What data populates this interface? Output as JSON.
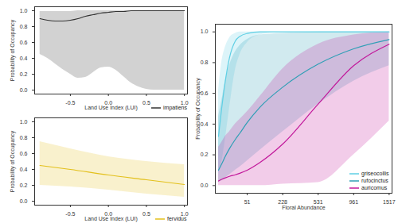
{
  "chart_data": [
    {
      "type": "line",
      "xlabel": "Land Use Index (LUI)",
      "ylabel": "Probability of Occupancy",
      "x": [
        -0.9,
        -0.8,
        -0.7,
        -0.6,
        -0.5,
        -0.4,
        -0.3,
        -0.2,
        -0.1,
        0,
        0.1,
        0.2,
        0.3,
        0.4,
        0.5,
        0.6,
        0.7,
        0.8,
        0.9,
        1.0
      ],
      "series": [
        {
          "name": "impatiens",
          "color": "#333333",
          "values": [
            0.9,
            0.88,
            0.87,
            0.87,
            0.88,
            0.9,
            0.93,
            0.95,
            0.97,
            0.98,
            0.99,
            0.99,
            1,
            1,
            1,
            1,
            1,
            1,
            1,
            1
          ],
          "lower": [
            0.45,
            0.4,
            0.33,
            0.26,
            0.2,
            0.15,
            0.16,
            0.22,
            0.28,
            0.29,
            0.25,
            0.17,
            0.09,
            0.04,
            0.01,
            0,
            0,
            0,
            0,
            0
          ],
          "upper": [
            0.99,
            0.99,
            0.99,
            0.99,
            0.99,
            1,
            1,
            1,
            1,
            1,
            1,
            1,
            1,
            1,
            1,
            1,
            1,
            1,
            1,
            1
          ]
        }
      ],
      "xlim": [
        -0.97,
        1.04
      ],
      "xticks": [
        -0.5,
        {
          "value": 0,
          "label": "0.0"
        },
        0.5,
        {
          "value": 1,
          "label": "1.0"
        }
      ],
      "ylim": [
        -0.05,
        1.05
      ],
      "yticks": [
        {
          "value": 0,
          "label": "0.0"
        },
        0.2,
        0.4,
        0.6,
        0.8,
        {
          "value": 1,
          "label": "1.0"
        }
      ],
      "grid": false,
      "legend": "bottom-right"
    },
    {
      "type": "line",
      "xlabel": "Land Use Index (LUI)",
      "ylabel": "Probability of Occupancy",
      "x": [
        -0.9,
        -0.5,
        0,
        0.5,
        1.0
      ],
      "series": [
        {
          "name": "fervidus",
          "color": "#e3c01b",
          "values": [
            0.45,
            0.4,
            0.33,
            0.27,
            0.21
          ],
          "lower": [
            0.2,
            0.18,
            0.14,
            0.09,
            0.05
          ],
          "upper": [
            0.75,
            0.66,
            0.56,
            0.5,
            0.46
          ]
        }
      ],
      "xlim": [
        -0.97,
        1.04
      ],
      "xticks": [
        -0.5,
        {
          "value": 0,
          "label": "0.0"
        },
        0.5,
        {
          "value": 1,
          "label": "1.0"
        }
      ],
      "ylim": [
        -0.05,
        1.05
      ],
      "yticks": [
        {
          "value": 0,
          "label": "0.0"
        },
        0.2,
        0.4,
        0.6,
        0.8,
        {
          "value": 1,
          "label": "1.0"
        }
      ],
      "grid": false,
      "legend": "bottom-right"
    },
    {
      "type": "line",
      "xlabel": "Floral Abundance",
      "ylabel": "Probability of Occupancy",
      "x": [
        0.5,
        2,
        5,
        10,
        20,
        30,
        51,
        100,
        228,
        531,
        961,
        1517
      ],
      "series": [
        {
          "name": "griseocollis",
          "color": "#5fcfe4",
          "values": [
            0.32,
            0.5,
            0.68,
            0.83,
            0.94,
            0.97,
            0.99,
            1,
            1,
            1,
            1,
            1
          ],
          "lower": [
            0.08,
            0.15,
            0.3,
            0.5,
            0.75,
            0.85,
            0.93,
            0.98,
            1,
            1,
            1,
            1
          ],
          "upper": [
            0.62,
            0.8,
            0.9,
            0.96,
            0.99,
            1,
            1,
            1,
            1,
            1,
            1,
            1
          ]
        },
        {
          "name": "rufocinctus",
          "color": "#2f9fb6",
          "values": [
            0.1,
            0.14,
            0.19,
            0.24,
            0.3,
            0.34,
            0.41,
            0.51,
            0.64,
            0.79,
            0.89,
            0.95
          ],
          "lower": [
            0.02,
            0.03,
            0.05,
            0.07,
            0.1,
            0.12,
            0.16,
            0.23,
            0.35,
            0.53,
            0.68,
            0.78
          ],
          "upper": [
            0.45,
            0.55,
            0.68,
            0.78,
            0.87,
            0.91,
            0.95,
            0.98,
            0.99,
            1,
            1,
            1
          ]
        },
        {
          "name": "auricomus",
          "color": "#c2189b",
          "values": [
            0.03,
            0.04,
            0.05,
            0.06,
            0.07,
            0.08,
            0.1,
            0.15,
            0.27,
            0.53,
            0.78,
            0.92
          ],
          "lower": [
            0,
            0,
            0,
            0,
            0,
            0,
            0,
            0,
            0.01,
            0.02,
            0.2,
            0.42
          ],
          "upper": [
            0.25,
            0.28,
            0.32,
            0.35,
            0.4,
            0.43,
            0.48,
            0.58,
            0.76,
            0.92,
            0.98,
            1
          ]
        }
      ],
      "xlim": [
        0,
        1568
      ],
      "xticks": [
        51,
        228,
        531,
        961,
        1517
      ],
      "ylim": [
        -0.05,
        1.05
      ],
      "yticks": [
        {
          "value": 0,
          "label": "0.0"
        },
        0.2,
        0.4,
        0.6,
        0.8,
        {
          "value": 1,
          "label": "1.0"
        }
      ],
      "grid": false,
      "legend": "bottom-right"
    }
  ]
}
